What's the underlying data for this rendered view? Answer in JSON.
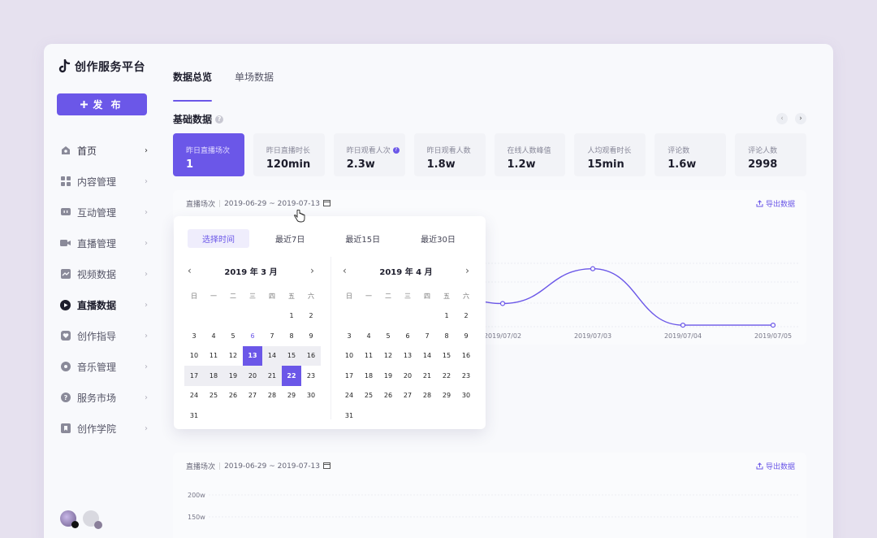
{
  "app": {
    "title": "创作服务平台"
  },
  "sidebar": {
    "publish_label": "发 布",
    "items": [
      {
        "label": "首页",
        "icon": "home-icon"
      },
      {
        "label": "内容管理",
        "icon": "grid-icon"
      },
      {
        "label": "互动管理",
        "icon": "chat-icon"
      },
      {
        "label": "直播管理",
        "icon": "camera-icon"
      },
      {
        "label": "视频数据",
        "icon": "trend-icon"
      },
      {
        "label": "直播数据",
        "icon": "play-icon"
      },
      {
        "label": "创作指导",
        "icon": "heart-icon"
      },
      {
        "label": "音乐管理",
        "icon": "music-icon"
      },
      {
        "label": "服务市场",
        "icon": "help-icon"
      },
      {
        "label": "创作学院",
        "icon": "bookmark-icon"
      }
    ]
  },
  "tabs": [
    "数据总览",
    "单场数据"
  ],
  "section": {
    "title": "基础数据"
  },
  "stats": [
    {
      "label": "昨日直播场次",
      "value": "1"
    },
    {
      "label": "昨日直播时长",
      "value": "120min"
    },
    {
      "label": "昨日观看人次",
      "value": "2.3w"
    },
    {
      "label": "昨日观看人数",
      "value": "1.8w"
    },
    {
      "label": "在线人数峰值",
      "value": "1.2w"
    },
    {
      "label": "人均观看时长",
      "value": "15min"
    },
    {
      "label": "评论数",
      "value": "1.6w"
    },
    {
      "label": "评论人数",
      "value": "2998"
    }
  ],
  "card1": {
    "metric": "直播场次",
    "range": "2019-06-29 ~ 2019-07-13",
    "export": "导出数据"
  },
  "card2": {
    "metric": "直播场次",
    "range": "2019-06-29 ~ 2019-07-13",
    "export": "导出数据",
    "y_ticks": [
      "200w",
      "150w"
    ]
  },
  "picker": {
    "quick": [
      "选择时间",
      "最近7日",
      "最近15日",
      "最近30日"
    ],
    "weekdays": [
      "日",
      "一",
      "二",
      "三",
      "四",
      "五",
      "六"
    ],
    "months": [
      {
        "title": "2019 年 3 月",
        "offset": 5,
        "days": 31
      },
      {
        "title": "2019 年 4 月",
        "offset": 5,
        "days": 31
      }
    ],
    "start_day": 13,
    "end_day": 22,
    "today": 6
  },
  "chart_data": {
    "type": "line",
    "x": [
      "2019/07/02",
      "2019/07/03",
      "2019/07/04",
      "2019/07/05"
    ],
    "values": [
      0.3,
      0.75,
      0.02,
      0.02
    ]
  },
  "colors": {
    "accent": "#6b57e8"
  }
}
